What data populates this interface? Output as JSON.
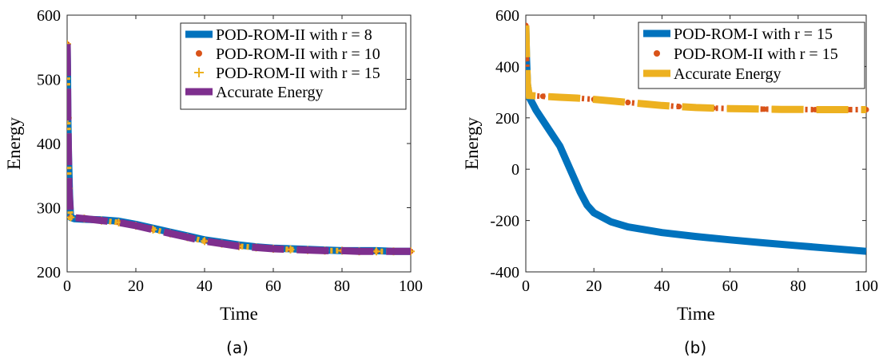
{
  "chart_data": [
    {
      "type": "line",
      "caption": "(a)",
      "xlabel": "Time",
      "ylabel": "Energy",
      "xlim": [
        0,
        100
      ],
      "ylim": [
        200,
        600
      ],
      "xticks": [
        "0",
        "20",
        "40",
        "60",
        "80",
        "100"
      ],
      "yticks": [
        "200",
        "300",
        "400",
        "500",
        "600"
      ],
      "grid": false,
      "legend_position": "top-right",
      "series": [
        {
          "name": "POD-ROM-II with r = 8",
          "color": "#0072BD",
          "style": "solid",
          "x": [
            0,
            0.1,
            0.2,
            0.4,
            0.7,
            1,
            2,
            5,
            10,
            15,
            20,
            25,
            30,
            35,
            40,
            45,
            50,
            55,
            60,
            65,
            70,
            75,
            80,
            85,
            90,
            95,
            100
          ],
          "y": [
            555,
            520,
            440,
            380,
            320,
            285,
            283,
            282,
            281,
            279,
            274,
            268,
            262,
            256,
            250,
            246,
            242,
            239,
            237,
            236,
            235,
            234,
            233,
            233,
            233,
            232,
            232
          ]
        },
        {
          "name": "POD-ROM-II with r = 10",
          "color": "#D95319",
          "style": "markers",
          "marker": "*",
          "x": [
            0,
            0.2,
            0.5,
            1,
            5,
            10,
            15,
            20,
            25,
            30,
            35,
            40,
            45,
            50,
            55,
            60,
            65,
            70,
            75,
            80,
            85,
            90,
            95,
            100
          ],
          "y": [
            555,
            440,
            330,
            285,
            283,
            280,
            277,
            272,
            266,
            260,
            254,
            248,
            244,
            240,
            238,
            236,
            235,
            234,
            233,
            233,
            232,
            232,
            232,
            232
          ]
        },
        {
          "name": "POD-ROM-II with r = 15",
          "color": "#EDB120",
          "style": "markers",
          "marker": "+",
          "x": [
            0,
            0.2,
            0.5,
            1,
            5,
            10,
            15,
            20,
            25,
            30,
            35,
            40,
            45,
            50,
            55,
            60,
            65,
            70,
            75,
            80,
            85,
            90,
            95,
            100
          ],
          "y": [
            555,
            440,
            330,
            285,
            283,
            280,
            277,
            272,
            266,
            260,
            254,
            248,
            244,
            240,
            238,
            236,
            235,
            234,
            233,
            233,
            232,
            232,
            232,
            232
          ]
        },
        {
          "name": "Accurate Energy",
          "color": "#7E2F8E",
          "style": "dashed",
          "x": [
            0,
            0.2,
            0.5,
            1,
            5,
            10,
            15,
            20,
            25,
            30,
            35,
            40,
            45,
            50,
            55,
            60,
            65,
            70,
            75,
            80,
            85,
            90,
            95,
            100
          ],
          "y": [
            555,
            440,
            330,
            285,
            283,
            280,
            277,
            272,
            266,
            260,
            254,
            248,
            244,
            240,
            238,
            236,
            235,
            234,
            233,
            233,
            232,
            232,
            232,
            232
          ]
        }
      ]
    },
    {
      "type": "line",
      "caption": "(b)",
      "xlabel": "Time",
      "ylabel": "Energy",
      "xlim": [
        0,
        100
      ],
      "ylim": [
        -400,
        600
      ],
      "xticks": [
        "0",
        "20",
        "40",
        "60",
        "80",
        "100"
      ],
      "yticks": [
        "-400",
        "-200",
        "0",
        "200",
        "400",
        "600"
      ],
      "grid": false,
      "legend_position": "top-right",
      "series": [
        {
          "name": "POD-ROM-I with r = 15",
          "color": "#0072BD",
          "style": "solid",
          "x": [
            0,
            0.2,
            0.5,
            1,
            3,
            6,
            10,
            13,
            16,
            18,
            20,
            25,
            30,
            40,
            50,
            60,
            70,
            80,
            90,
            100
          ],
          "y": [
            555,
            430,
            330,
            280,
            230,
            170,
            90,
            0,
            -90,
            -140,
            -170,
            -205,
            -225,
            -247,
            -262,
            -275,
            -287,
            -298,
            -309,
            -320
          ]
        },
        {
          "name": "POD-ROM-II with r = 15",
          "color": "#D95319",
          "style": "markers",
          "marker": "*",
          "x": [
            0,
            0.2,
            0.5,
            1,
            5,
            10,
            15,
            20,
            25,
            30,
            35,
            40,
            45,
            50,
            55,
            60,
            65,
            70,
            75,
            80,
            85,
            90,
            95,
            100
          ],
          "y": [
            560,
            430,
            330,
            287,
            284,
            280,
            277,
            272,
            266,
            260,
            254,
            248,
            244,
            240,
            238,
            236,
            235,
            234,
            233,
            233,
            232,
            232,
            232,
            232
          ]
        },
        {
          "name": "Accurate Energy",
          "color": "#EDB120",
          "style": "dashed",
          "x": [
            0,
            0.2,
            0.5,
            1,
            5,
            10,
            15,
            20,
            25,
            30,
            35,
            40,
            45,
            50,
            55,
            60,
            65,
            70,
            75,
            80,
            85,
            90,
            95,
            100
          ],
          "y": [
            560,
            430,
            330,
            287,
            284,
            280,
            277,
            272,
            266,
            260,
            254,
            248,
            244,
            240,
            238,
            236,
            235,
            234,
            233,
            233,
            232,
            232,
            232,
            232
          ]
        }
      ]
    }
  ]
}
